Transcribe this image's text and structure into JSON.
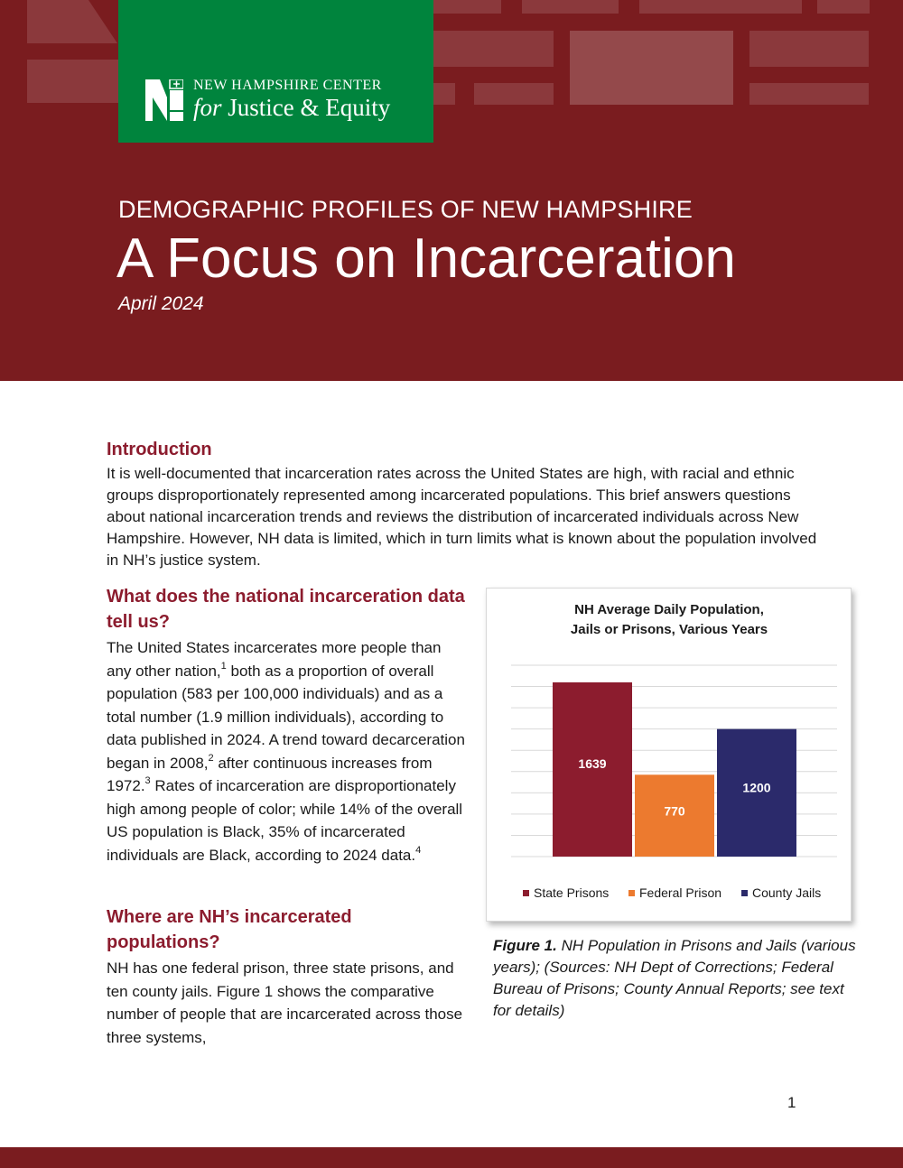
{
  "banner": {
    "logo": {
      "line1": "NEW HAMPSHIRE CENTER",
      "line2_italic": "for",
      "line2_rest": "Justice & Equity"
    },
    "kicker": "DEMOGRAPHIC PROFILES OF NEW HAMPSHIRE",
    "title": "A Focus on Incarceration",
    "date": "April 2024",
    "colors": {
      "maroon": "#7a1c1f",
      "green": "#00843d"
    }
  },
  "intro": {
    "heading": "Introduction",
    "text": "It is well-documented that incarceration rates across the United States are high, with racial and ethnic groups disproportionately represented among incarcerated populations. This brief answers questions about national incarceration trends and reviews the distribution of incarcerated individuals across New Hampshire. However, NH data is limited, which in turn limits what is known about the population involved in NH’s justice system."
  },
  "national": {
    "heading": "What does the national incarceration data tell us?",
    "p1": "The United States incarcerates more people than any other nation,",
    "fn1": "1",
    "p2": " both as a proportion of overall population (583 per 100,000 individuals) and as a total number (1.9 million individuals), according to data published in 2024. A trend toward decarceration began in 2008,",
    "fn2": "2",
    "p3": " after continuous increases from 1972.",
    "fn3": "3",
    "p4": " Rates of incarceration are disproportionately high among people of color; while 14% of the overall US population is Black, 35% of incarcerated individuals are Black, according to 2024 data.",
    "fn4": "4"
  },
  "nh": {
    "heading": "Where are NH’s incarcerated populations?",
    "text": "NH has one federal prison, three state prisons, and ten county jails. Figure 1 shows the comparative number of people that are incarcerated across those three systems,"
  },
  "chart_data": {
    "type": "bar",
    "title": "NH Average Daily Population, Jails or Prisons, Various Years",
    "title_lines": [
      "NH Average Daily Population,",
      "Jails or Prisons, Various Years"
    ],
    "categories": [
      "State Prisons",
      "Federal Prison",
      "County Jails"
    ],
    "values": [
      1639,
      770,
      1200
    ],
    "colors": [
      "#8c1c2e",
      "#ec7a2f",
      "#2b2a6b"
    ],
    "ylim": [
      0,
      1800
    ],
    "grid": true,
    "legend": "bottom",
    "xlabel": "",
    "ylabel": ""
  },
  "caption": {
    "label": "Figure 1.",
    "text": " NH Population in Prisons and Jails (various years); (Sources: NH Dept of Corrections; Federal Bureau of Prisons; County Annual Reports; see text for details)"
  },
  "page_number": "1"
}
